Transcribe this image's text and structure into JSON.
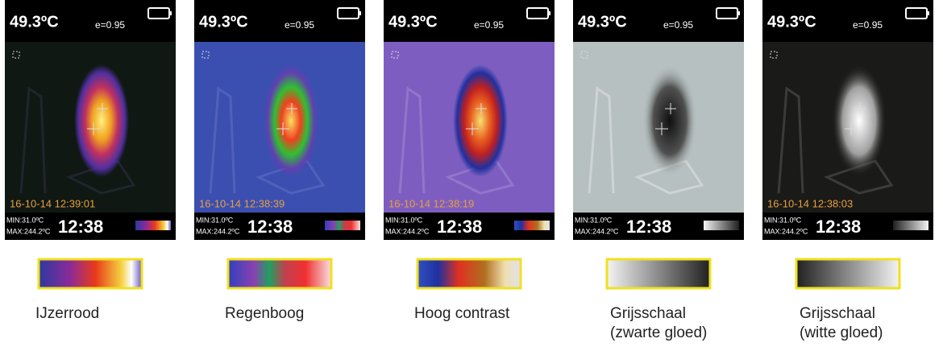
{
  "panels": [
    {
      "temperature": "49.3ºC",
      "emissivity": "e=0.95",
      "timestamp": "16-10-14 12:39:01",
      "min": "MIN:31.0ºC",
      "max": "MAX:244.2ºC",
      "clock": "12:38",
      "label": [
        "IJzerrood"
      ]
    },
    {
      "temperature": "49.3ºC",
      "emissivity": "e=0.95",
      "timestamp": "16-10-14 12:38:39",
      "min": "MIN:31.0ºC",
      "max": "MAX:244.2ºC",
      "clock": "12:38",
      "label": [
        "Regenboog"
      ]
    },
    {
      "temperature": "49.3ºC",
      "emissivity": "e=0.95",
      "timestamp": "16-10-14 12:38:19",
      "min": "MIN:31.0ºC",
      "max": "MAX:244.2ºC",
      "clock": "12:38",
      "label": [
        "Hoog contrast"
      ]
    },
    {
      "temperature": "49.3ºC",
      "emissivity": "e=0.95",
      "min": "MIN:31.0ºC",
      "max": "MAX:244.2ºC",
      "clock": "12:38",
      "label": [
        "Grijsschaal",
        "(zwarte gloed)"
      ]
    },
    {
      "temperature": "49.3ºC",
      "emissivity": "e=0.95",
      "timestamp": "16-10-14 12:38:03",
      "min": "MIN:31.0ºC",
      "max": "MAX:244.2ºC",
      "clock": "12:38",
      "label": [
        "Grijsschaal",
        "(witte gloed)"
      ]
    }
  ]
}
